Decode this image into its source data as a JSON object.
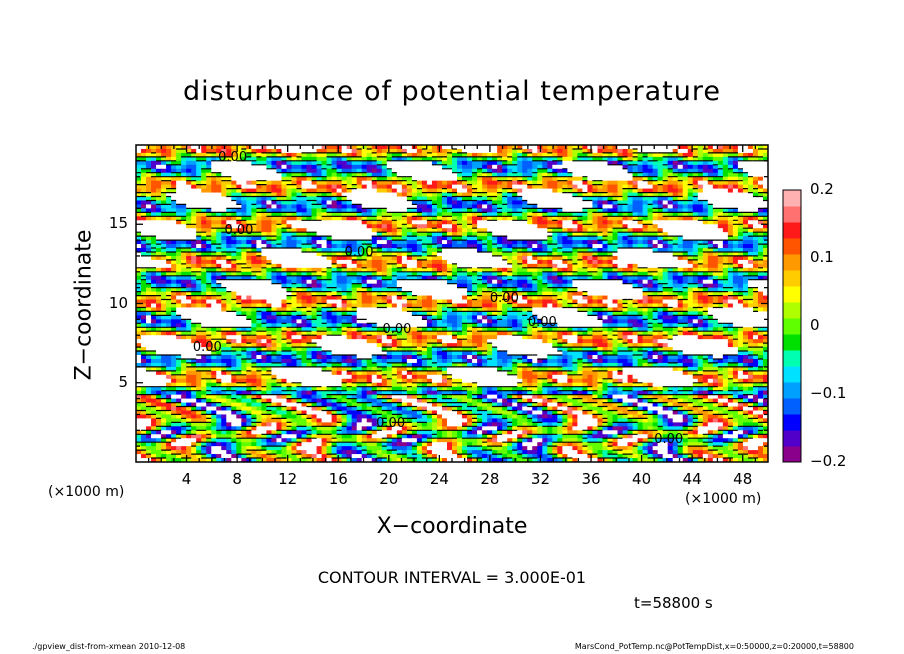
{
  "chart_data": {
    "type": "heatmap",
    "title": "disturbunce of potential temperature",
    "xlabel": "X−coordinate",
    "ylabel": "Z−coordinate",
    "x_unit_left": "(×1000 m)",
    "x_unit_right": "(×1000 m)",
    "x_ticks": [
      "4",
      "8",
      "12",
      "16",
      "20",
      "24",
      "28",
      "32",
      "36",
      "40",
      "44",
      "48"
    ],
    "x_tick_values": [
      4,
      8,
      12,
      16,
      20,
      24,
      28,
      32,
      36,
      40,
      44,
      48
    ],
    "xlim": [
      0,
      50
    ],
    "y_ticks": [
      "5",
      "10",
      "15"
    ],
    "y_tick_values": [
      5,
      10,
      15
    ],
    "ylim": [
      0,
      20
    ],
    "colorbar_ticks": [
      "0.2",
      "0.1",
      "0",
      "−0.1",
      "−0.2"
    ],
    "colorbar_values": [
      0.2,
      0.1,
      0,
      -0.1,
      -0.2
    ],
    "colorbar_range": [
      -0.2,
      0.2
    ],
    "colormap": [
      "#8b008b",
      "#5000c8",
      "#0000ff",
      "#0060ff",
      "#00a0ff",
      "#00e0ff",
      "#00ffb0",
      "#00e000",
      "#60ff00",
      "#b0ff00",
      "#ffff00",
      "#ffcc00",
      "#ff9900",
      "#ff5500",
      "#ff1a1a",
      "#ff7070",
      "#ffb0b0"
    ],
    "contour_labels": [
      "0.00",
      "0.00",
      "0.00",
      "0.00",
      "0.00",
      "0.00",
      "0.00",
      "0.00",
      "0.00"
    ],
    "contour_interval": "CONTOUR INTERVAL = 3.000E-01",
    "time": "t=58800 s",
    "footer_left": "./gpview_dist-from-xmean  2010-12-08",
    "footer_right": "MarsCond_PotTemp.nc@PotTempDist,x=0:50000,z=0:20000,t=58800"
  }
}
